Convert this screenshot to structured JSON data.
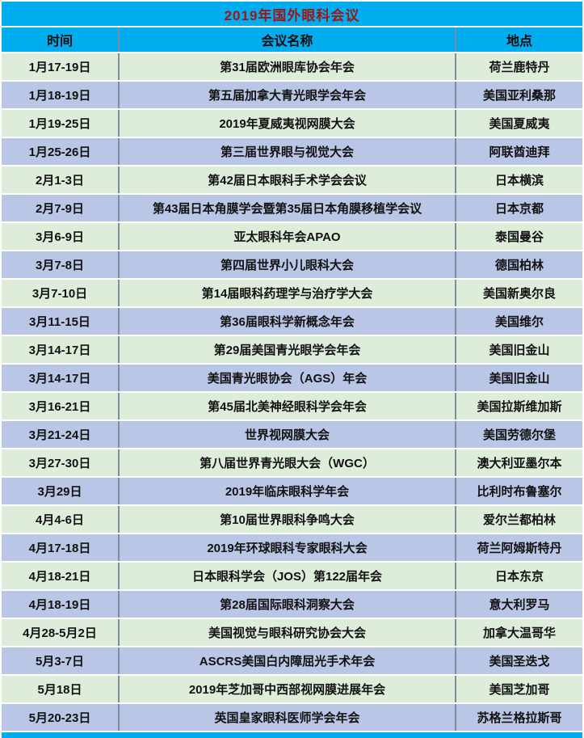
{
  "title": "2019年国外眼科会议",
  "columns": [
    "时间",
    "会议名称",
    "地点"
  ],
  "colors": {
    "header_bg": "#00AEEF",
    "title_text": "#A31515",
    "row_green": "#DEEDDA",
    "row_blue": "#B9C6E5",
    "grid_vertical": "#7D8CA0",
    "grid_horizontal": "#FFFFFF",
    "text": "#111111"
  },
  "rows": [
    {
      "time": "1月17-19日",
      "name": "第31届欧洲眼库协会年会",
      "location": "荷兰鹿特丹"
    },
    {
      "time": "1月18-19日",
      "name": "第五届加拿大青光眼学会年会",
      "location": "美国亚利桑那"
    },
    {
      "time": "1月19-25日",
      "name": "2019年夏威夷视网膜大会",
      "location": "美国夏威夷"
    },
    {
      "time": "1月25-26日",
      "name": "第三届世界眼与视觉大会",
      "location": "阿联酋迪拜"
    },
    {
      "time": "2月1-3日",
      "name": "第42届日本眼科手术学会会议",
      "location": "日本横滨"
    },
    {
      "time": "2月7-9日",
      "name": "第43届日本角膜学会暨第35届日本角膜移植学会议",
      "location": "日本京都"
    },
    {
      "time": "3月6-9日",
      "name": "亚太眼科年会APAO",
      "location": "泰国曼谷"
    },
    {
      "time": "3月7-8日",
      "name": "第四届世界小儿眼科大会",
      "location": "德国柏林"
    },
    {
      "time": "3月7-10日",
      "name": "第14届眼科药理学与治疗学大会",
      "location": "美国新奥尔良"
    },
    {
      "time": "3月11-15日",
      "name": "第36届眼科学新概念年会",
      "location": "美国维尔"
    },
    {
      "time": "3月14-17日",
      "name": "第29届美国青光眼学会年会",
      "location": "美国旧金山"
    },
    {
      "time": "3月14-17日",
      "name": "美国青光眼协会（AGS）年会",
      "location": "美国旧金山"
    },
    {
      "time": "3月16-21日",
      "name": "第45届北美神经眼科学会年会",
      "location": "美国拉斯维加斯"
    },
    {
      "time": "3月21-24日",
      "name": "世界视网膜大会",
      "location": "美国劳德尔堡"
    },
    {
      "time": "3月27-30日",
      "name": "第八届世界青光眼大会（WGC）",
      "location": "澳大利亚墨尔本"
    },
    {
      "time": "3月29日",
      "name": "2019年临床眼科学年会",
      "location": "比利时布鲁塞尔"
    },
    {
      "time": "4月4-6日",
      "name": "第10届世界眼科争鸣大会",
      "location": "爱尔兰都柏林"
    },
    {
      "time": "4月17-18日",
      "name": "2019年环球眼科专家眼科大会",
      "location": "荷兰阿姆斯特丹"
    },
    {
      "time": "4月18-21日",
      "name": "日本眼科学会（JOS）第122届年会",
      "location": "日本东京"
    },
    {
      "time": "4月18-19日",
      "name": "第28届国际眼科洞察大会",
      "location": "意大利罗马"
    },
    {
      "time": "4月28-5月2日",
      "name": "美国视觉与眼科研究协会大会",
      "location": "加拿大温哥华"
    },
    {
      "time": "5月3-7日",
      "name": "ASCRS美国白内障屈光手术年会",
      "location": "美国圣迭戈"
    },
    {
      "time": "5月18日",
      "name": "2019年芝加哥中西部视网膜进展年会",
      "location": "美国芝加哥"
    },
    {
      "time": "5月20-23日",
      "name": "英国皇家眼科医师学会年会",
      "location": "苏格兰格拉斯哥"
    }
  ]
}
